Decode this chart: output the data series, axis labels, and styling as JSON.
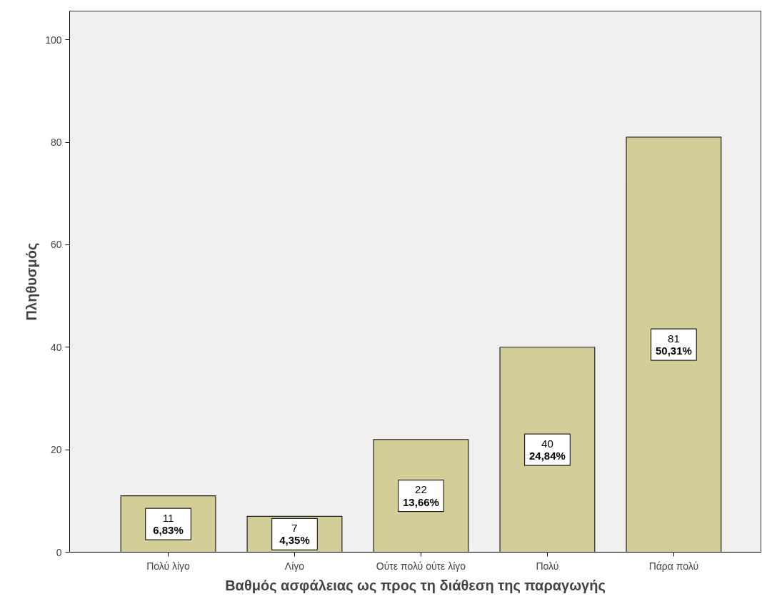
{
  "chart_data": {
    "type": "bar",
    "xlabel": "Βαθμός ασφάλειας ως προς τη διάθεση της παραγωγής",
    "ylabel": "Πληθυσμός",
    "categories": [
      "Πολύ λίγο",
      "Λίγο",
      "Ούτε πολύ ούτε λίγο",
      "Πολύ",
      "Πάρα πολύ"
    ],
    "values": [
      11,
      7,
      22,
      40,
      81
    ],
    "value_labels": [
      "11\n6,83%",
      "7\n4,35%",
      "22\n13,66%",
      "40\n24,84%",
      "81\n50,31%"
    ],
    "color": "#d3ce97",
    "ylim": [
      0,
      105.6
    ],
    "yticks": [
      0,
      20,
      40,
      60,
      80,
      100
    ],
    "grid": false
  }
}
